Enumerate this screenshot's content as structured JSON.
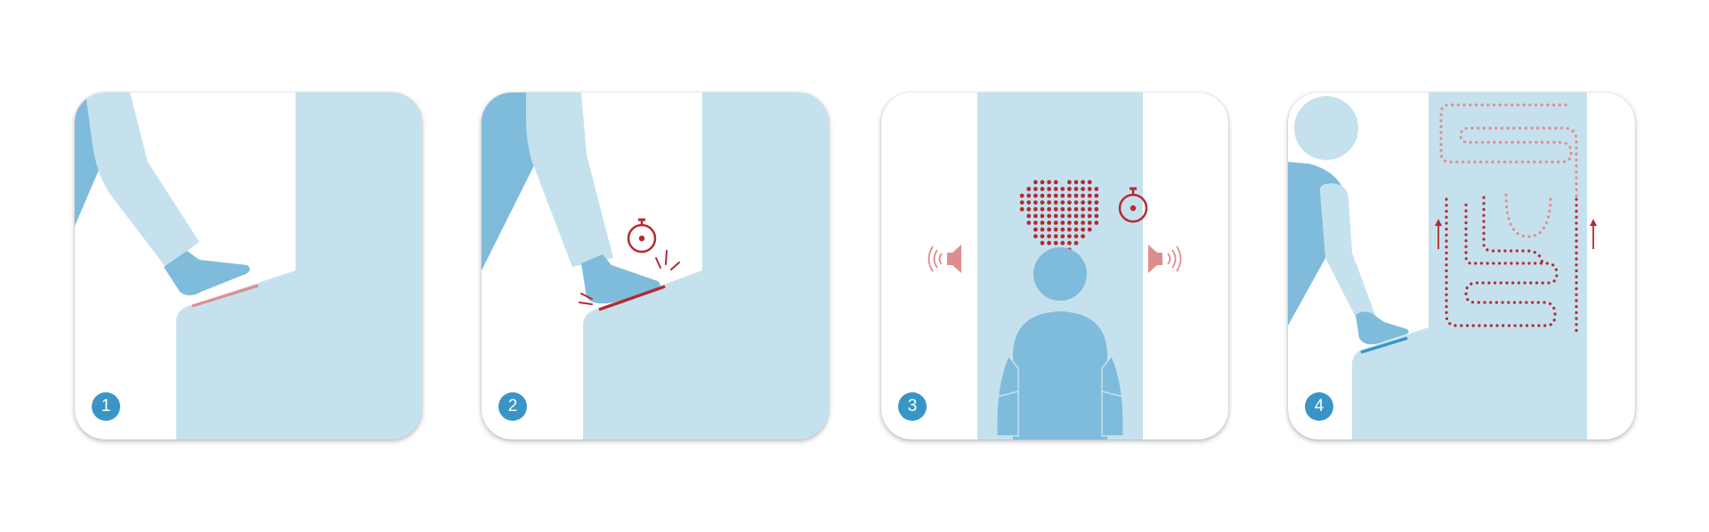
{
  "colors": {
    "light_blue": "#c5e1ee",
    "mid_blue": "#7fbbdb",
    "badge_blue": "#3a95c7",
    "red": "#b52a30",
    "pink": "#de8d8f",
    "white": "#ffffff"
  },
  "steps": [
    {
      "number": "1",
      "icons": [
        "leg-icon",
        "foot-icon",
        "pedal-line"
      ]
    },
    {
      "number": "2",
      "icons": [
        "leg-icon",
        "foot-icon",
        "stopwatch-icon",
        "press-burst-icon"
      ]
    },
    {
      "number": "3",
      "icons": [
        "heart-dots-icon",
        "stopwatch-icon",
        "speaker-left-icon",
        "speaker-right-icon",
        "person-icon"
      ]
    },
    {
      "number": "4",
      "icons": [
        "person-icon",
        "hand-icon",
        "serpentine-dotted-path-icon",
        "up-arrow-icon"
      ]
    }
  ]
}
